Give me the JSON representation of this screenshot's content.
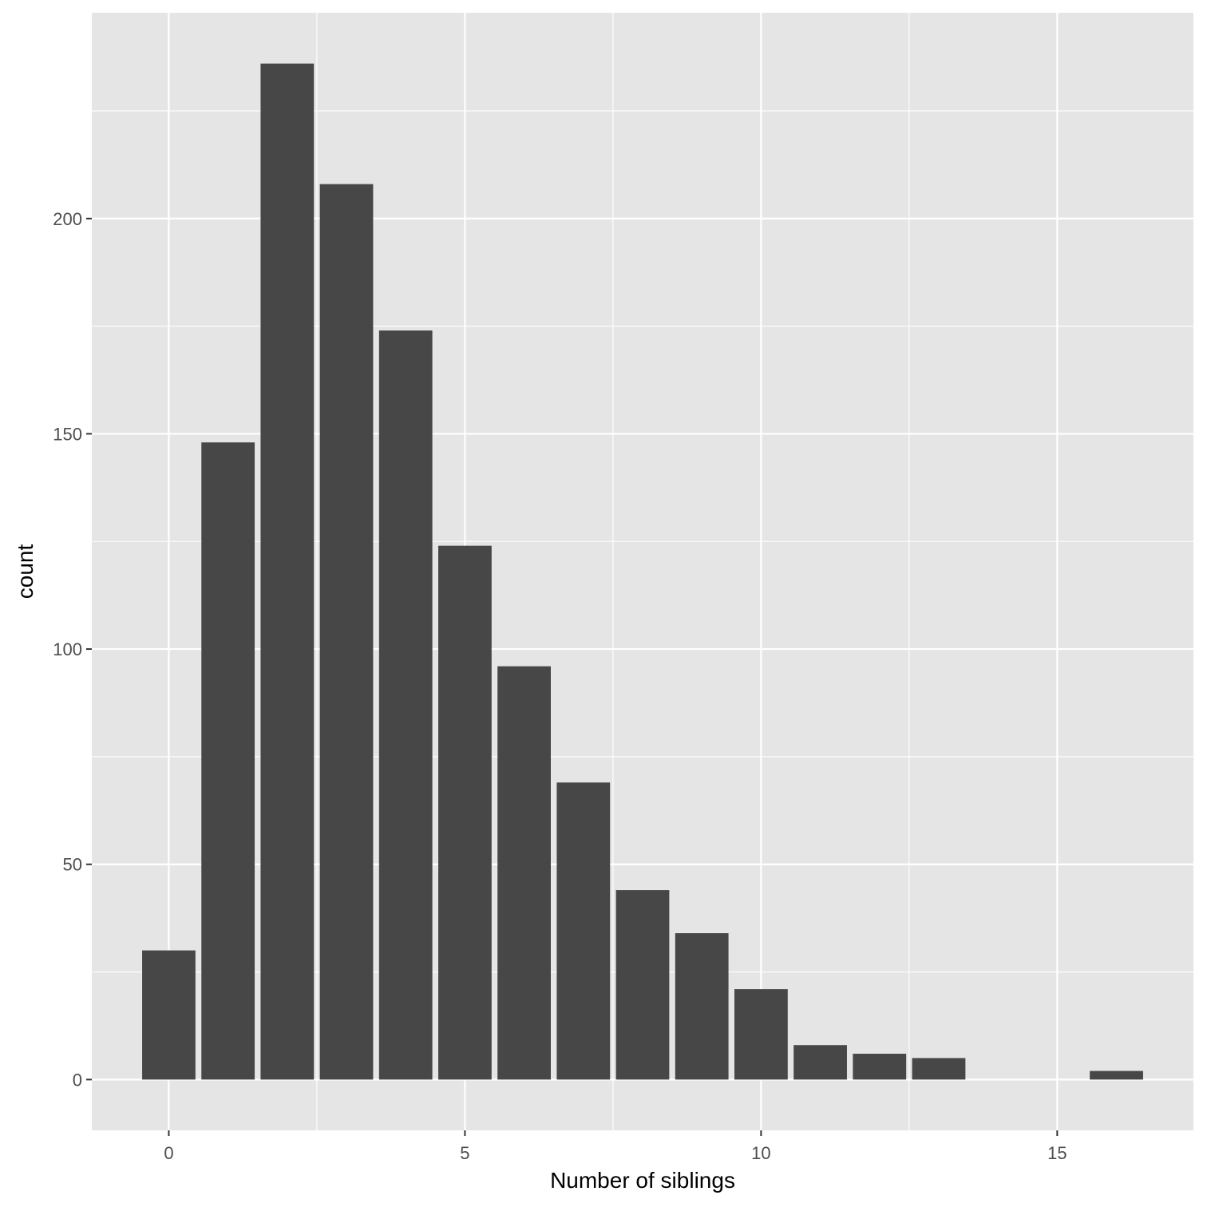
{
  "chart_data": {
    "type": "bar",
    "xlabel": "Number of siblings",
    "ylabel": "count",
    "x": [
      0,
      1,
      2,
      3,
      4,
      5,
      6,
      7,
      8,
      9,
      10,
      11,
      12,
      13,
      16
    ],
    "values": [
      30,
      148,
      236,
      208,
      174,
      124,
      96,
      69,
      44,
      34,
      21,
      8,
      6,
      5,
      2
    ],
    "xlim": [
      -1.3,
      17.3
    ],
    "ylim": [
      -11.8,
      247.8
    ],
    "x_ticks": [
      0,
      5,
      10,
      15
    ],
    "x_tick_labels": [
      "0",
      "5",
      "10",
      "15"
    ],
    "y_ticks": [
      0,
      50,
      100,
      150,
      200
    ],
    "y_tick_labels": [
      "0",
      "50",
      "100",
      "150",
      "200"
    ],
    "bar_width": 0.9,
    "grid": true,
    "colors": {
      "panel_background": "#e5e5e5",
      "grid_line": "#ffffff",
      "bar_fill": "#474747",
      "tick_label": "#4d4d4d",
      "tick_mark": "#333333",
      "axis_title": "#000000"
    }
  }
}
